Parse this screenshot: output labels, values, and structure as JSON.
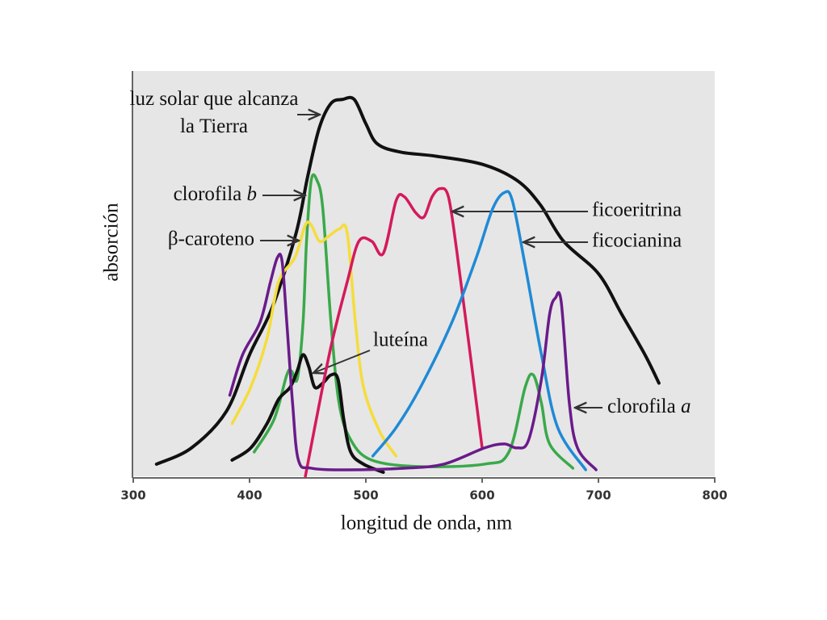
{
  "chart_data": {
    "type": "line",
    "xlabel": "longitud de onda, nm",
    "ylabel": "absorción",
    "xlim": [
      300,
      800
    ],
    "xticks": [
      300,
      400,
      500,
      600,
      700,
      800
    ],
    "ylim": [
      0,
      100
    ],
    "series": [
      {
        "name": "luz solar que alcanza la Tierra",
        "color": "#111111",
        "x": [
          320,
          350,
          380,
          400,
          420,
          440,
          450,
          460,
          470,
          480,
          490,
          500,
          510,
          530,
          560,
          600,
          630,
          650,
          670,
          700,
          720,
          740,
          752
        ],
        "values": [
          3,
          7,
          16,
          30,
          42,
          60,
          74,
          86,
          92,
          93,
          93,
          87,
          82,
          80,
          79,
          77,
          73,
          67,
          58,
          50,
          40,
          30,
          23
        ]
      },
      {
        "name": "clorofila b",
        "color": "#3aa94a",
        "x": [
          404,
          421,
          432,
          436,
          441,
          446,
          449,
          453,
          458,
          463,
          470,
          477,
          487,
          505,
          546,
          602,
          623,
          637,
          644,
          651,
          658,
          678
        ],
        "values": [
          6,
          14,
          25,
          26,
          24,
          38,
          58,
          73,
          73,
          66,
          38,
          18,
          9,
          4,
          2.4,
          3,
          6,
          22,
          25,
          18,
          8,
          2
        ]
      },
      {
        "name": "β-caroteno",
        "color": "#f5dc3c",
        "x": [
          385,
          401,
          415,
          425,
          439,
          448,
          453,
          460,
          467,
          477,
          484,
          491,
          498,
          512,
          526
        ],
        "values": [
          13,
          22,
          34,
          48,
          54,
          62,
          62,
          58,
          59,
          61,
          60,
          38,
          22,
          11,
          5
        ]
      },
      {
        "name": "luteína",
        "color": "#111111",
        "x": [
          385,
          401,
          415,
          425,
          435,
          441,
          446,
          451,
          456,
          463,
          470,
          476,
          481,
          487,
          498,
          515
        ],
        "values": [
          4,
          7,
          13,
          19,
          22,
          26,
          30,
          27,
          22,
          23,
          25,
          24,
          14,
          6,
          3,
          1
        ]
      },
      {
        "name": "ficoeritrina",
        "color": "#d41a5c",
        "x": [
          448,
          456,
          470,
          484,
          494,
          505,
          515,
          526,
          533,
          543,
          550,
          557,
          564,
          571,
          578,
          588,
          600
        ],
        "values": [
          0,
          12,
          32,
          48,
          58,
          58,
          55,
          68,
          69,
          65,
          64,
          69,
          71,
          69,
          56,
          34,
          7
        ]
      },
      {
        "name": "ficocianina",
        "color": "#1f8ad6",
        "x": [
          506,
          526,
          547,
          574,
          595,
          609,
          619,
          626,
          637,
          651,
          665,
          689
        ],
        "values": [
          5,
          12,
          22,
          38,
          54,
          66,
          70,
          68,
          52,
          30,
          12,
          1.6
        ]
      },
      {
        "name": "clorofila a",
        "color": "#6a1b8a",
        "x": [
          383,
          394,
          409,
          418,
          424,
          428,
          432,
          437,
          442,
          453,
          484,
          533,
          567,
          602,
          619,
          630,
          640,
          651,
          658,
          663,
          668,
          675,
          682,
          698
        ],
        "values": [
          20,
          30,
          38,
          48,
          54,
          53,
          38,
          18,
          4,
          2,
          1.6,
          2,
          3,
          7,
          8,
          7,
          9,
          24,
          40,
          44,
          43,
          18,
          7,
          1.6
        ]
      }
    ]
  }
}
